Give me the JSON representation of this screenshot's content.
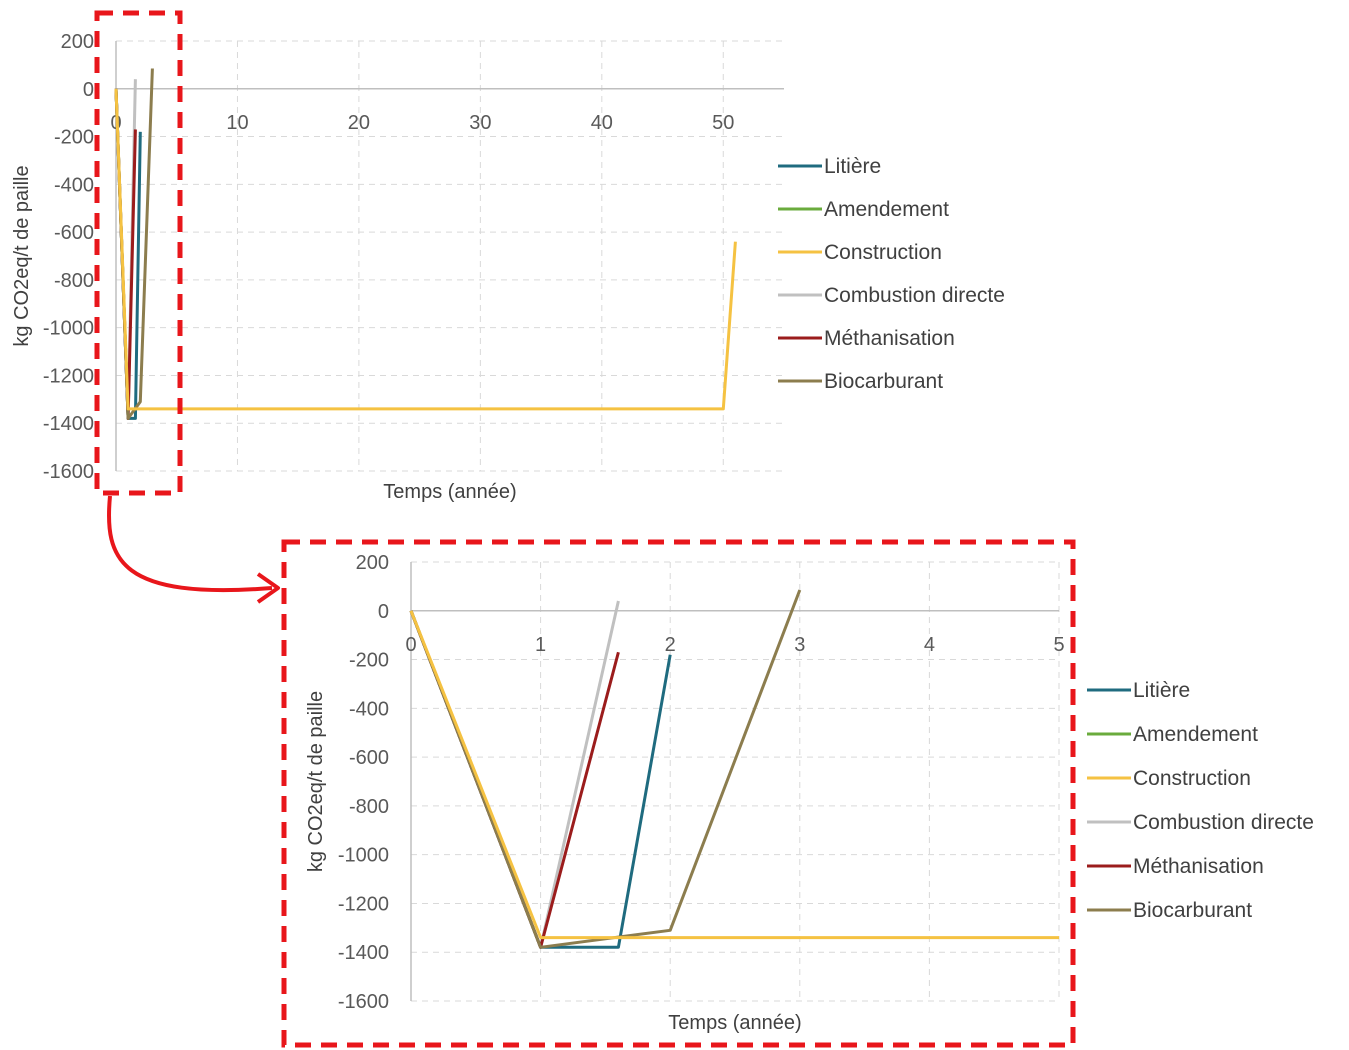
{
  "colors": {
    "Litière": "#1f6b7f",
    "Amendement": "#6aab3c",
    "Construction": "#f5c242",
    "Combustion directe": "#c0c0c0",
    "Méthanisation": "#9b1c1c",
    "Biocarburant": "#8c7d4e",
    "highlight": "#e8161b"
  },
  "chart_data": [
    {
      "type": "line",
      "title": "",
      "xlabel": "Temps (année)",
      "ylabel": "kg CO2eq/t de paille",
      "xlim": [
        0,
        55
      ],
      "ylim": [
        -1600,
        200
      ],
      "xticks": [
        0,
        10,
        20,
        30,
        40,
        50
      ],
      "yticks": [
        200,
        0,
        -200,
        -400,
        -600,
        -800,
        -1000,
        -1200,
        -1400,
        -1600
      ],
      "grid": true,
      "legend": "right",
      "series": [
        {
          "name": "Litière",
          "x": [
            0,
            1,
            1.6,
            2
          ],
          "y": [
            0,
            -1380,
            -1380,
            -180
          ]
        },
        {
          "name": "Amendement",
          "x": [
            0,
            1
          ],
          "y": [
            0,
            -1380
          ]
        },
        {
          "name": "Construction",
          "x": [
            0,
            1,
            50,
            51
          ],
          "y": [
            0,
            -1340,
            -1340,
            -640
          ]
        },
        {
          "name": "Combustion directe",
          "x": [
            0,
            1,
            1.6
          ],
          "y": [
            0,
            -1380,
            40
          ]
        },
        {
          "name": "Méthanisation",
          "x": [
            0,
            1,
            1.6
          ],
          "y": [
            0,
            -1380,
            -170
          ]
        },
        {
          "name": "Biocarburant",
          "x": [
            0,
            1,
            2,
            3
          ],
          "y": [
            0,
            -1380,
            -1310,
            85
          ]
        }
      ]
    },
    {
      "type": "line",
      "title": "",
      "xlabel": "Temps (année)",
      "ylabel": "kg CO2eq/t de paille",
      "xlim": [
        0,
        5
      ],
      "ylim": [
        -1600,
        200
      ],
      "xticks": [
        0,
        1,
        2,
        3,
        4,
        5
      ],
      "yticks": [
        200,
        0,
        -200,
        -400,
        -600,
        -800,
        -1000,
        -1200,
        -1400,
        -1600
      ],
      "grid": true,
      "legend": "right",
      "series": [
        {
          "name": "Litière",
          "x": [
            0,
            1,
            1.6,
            2
          ],
          "y": [
            0,
            -1380,
            -1380,
            -180
          ]
        },
        {
          "name": "Amendement",
          "x": [
            0,
            1
          ],
          "y": [
            0,
            -1380
          ]
        },
        {
          "name": "Construction",
          "x": [
            0,
            1,
            5
          ],
          "y": [
            0,
            -1340,
            -1340
          ]
        },
        {
          "name": "Combustion directe",
          "x": [
            0,
            1,
            1.6
          ],
          "y": [
            0,
            -1380,
            40
          ]
        },
        {
          "name": "Méthanisation",
          "x": [
            0,
            1,
            1.6
          ],
          "y": [
            0,
            -1380,
            -170
          ]
        },
        {
          "name": "Biocarburant",
          "x": [
            0,
            1,
            2,
            3
          ],
          "y": [
            0,
            -1380,
            -1310,
            85
          ]
        }
      ]
    }
  ]
}
